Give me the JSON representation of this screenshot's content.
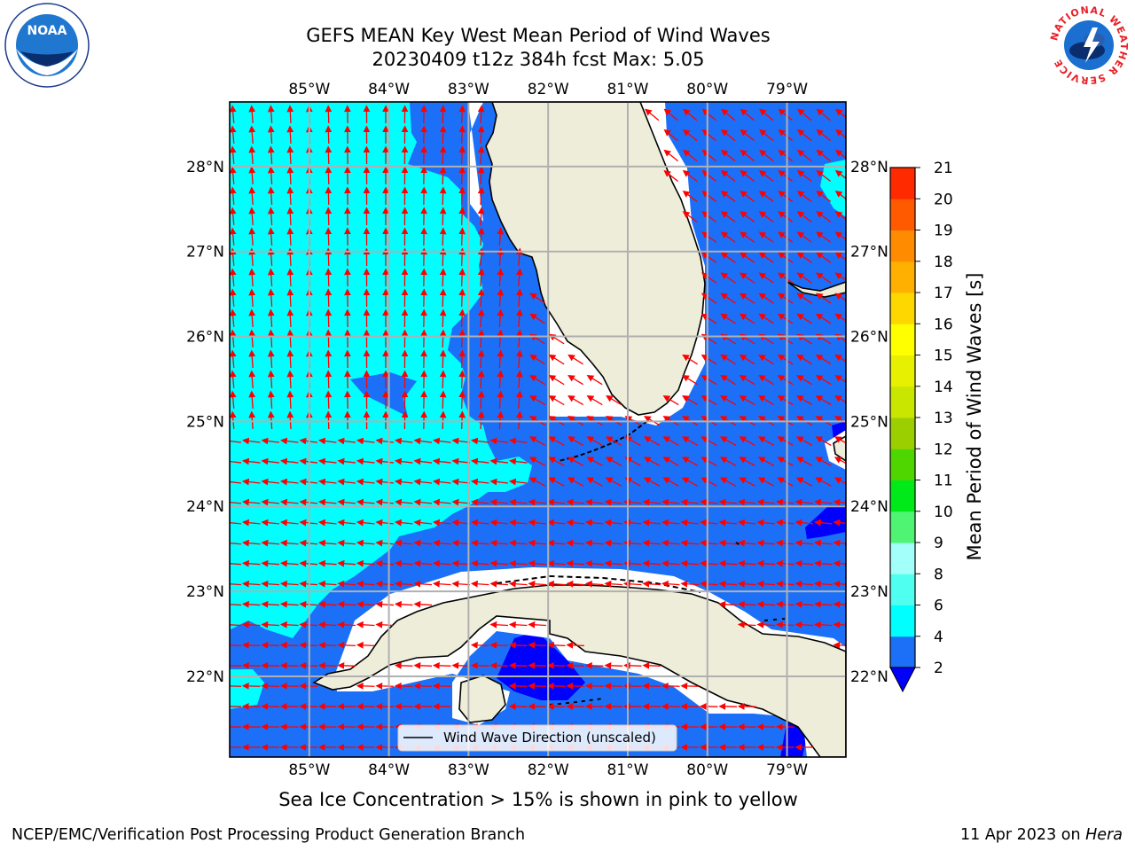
{
  "title": {
    "line1": "GEFS MEAN Key West Mean Period of Wind Waves",
    "line2": "20230409 t12z 384h fcst   Max: 5.05"
  },
  "map": {
    "lon_labels": [
      "85°W",
      "84°W",
      "83°W",
      "82°W",
      "81°W",
      "80°W",
      "79°W"
    ],
    "lat_labels": [
      "28°N",
      "27°N",
      "26°N",
      "25°N",
      "24°N",
      "23°N",
      "22°N"
    ],
    "legend_label": "Wind Wave Direction (unscaled)",
    "land_color": "#eeedda",
    "arrow_color": "#ff0000"
  },
  "colorbar": {
    "label": "Mean Period of Wind Waves [s]",
    "ticks": [
      "2",
      "4",
      "6",
      "8",
      "9",
      "10",
      "11",
      "12",
      "13",
      "14",
      "15",
      "16",
      "17",
      "18",
      "19",
      "20",
      "21"
    ],
    "colors": [
      "#1c70f8",
      "#00ffff",
      "#4ffff0",
      "#a3fffa",
      "#4ff572",
      "#00ea1a",
      "#4fd600",
      "#9ccf00",
      "#c8e600",
      "#e6f000",
      "#ffff00",
      "#ffd700",
      "#ffb000",
      "#ff8c00",
      "#ff5a00",
      "#ff2a00"
    ],
    "under_color": "#0000ff"
  },
  "note": "Sea Ice Concentration > 15% is shown in pink to yellow",
  "credits": {
    "left": "NCEP/EMC/Verification Post Processing Product Generation Branch",
    "date": "11 Apr 2023 on ",
    "host": "Hera"
  },
  "logos": {
    "noaa_text": "NOAA",
    "nws_text": "NATIONAL WEATHER SERVICE"
  }
}
